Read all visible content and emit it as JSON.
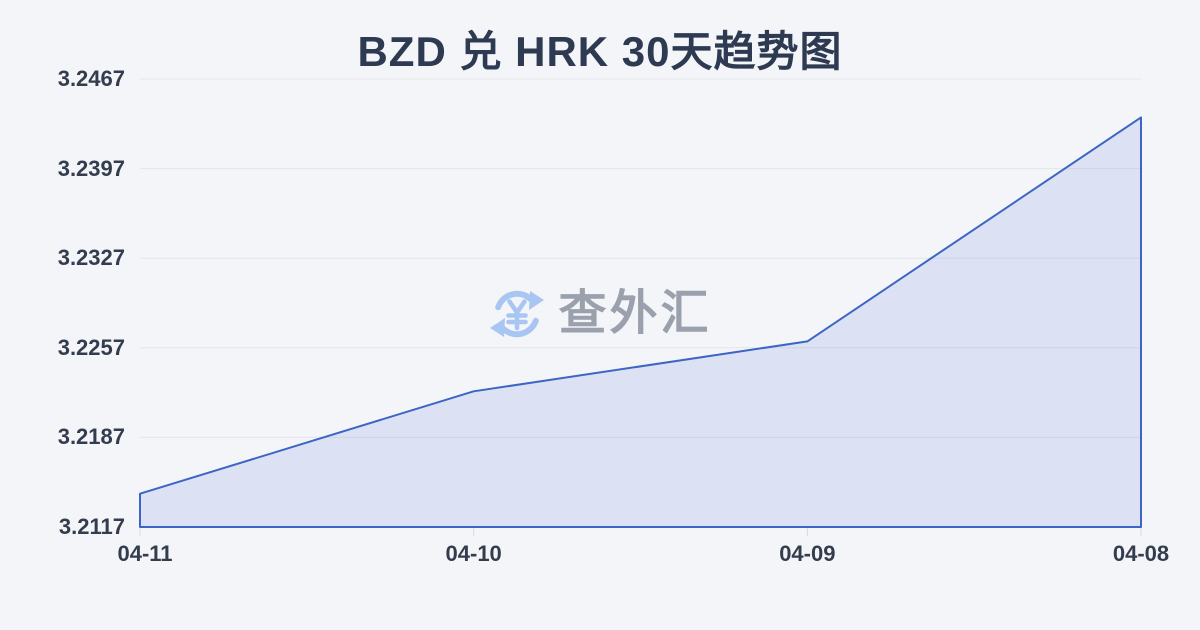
{
  "page": {
    "background_color": "#f4f5f8"
  },
  "header": {
    "title": "BZD 兑 HRK 30天趋势图",
    "title_color": "#2d3a51"
  },
  "watermark": {
    "icon": "yuan-refresh-icon",
    "icon_color": "#a9c6f2",
    "text": "查外汇",
    "text_color": "#9aa1ac"
  },
  "chart_data": {
    "type": "area",
    "title": "BZD 兑 HRK 30天趋势图",
    "x": [
      "04-11",
      "04-10",
      "04-09",
      "04-08"
    ],
    "values": [
      3.2143,
      3.2223,
      3.2262,
      3.2437
    ],
    "y_ticks": [
      3.2467,
      3.2397,
      3.2327,
      3.2257,
      3.2187,
      3.2117
    ],
    "ylim": [
      3.2117,
      3.2467
    ],
    "xlabel": "",
    "ylabel": "",
    "grid": true,
    "legend": "none",
    "line_color": "#3d65c5",
    "fill_color": "rgba(88,120,214,0.15)",
    "gridline_color": "#e3e5e9",
    "tick_mark_color": "#d8dade",
    "label_color": "#333d4e"
  }
}
